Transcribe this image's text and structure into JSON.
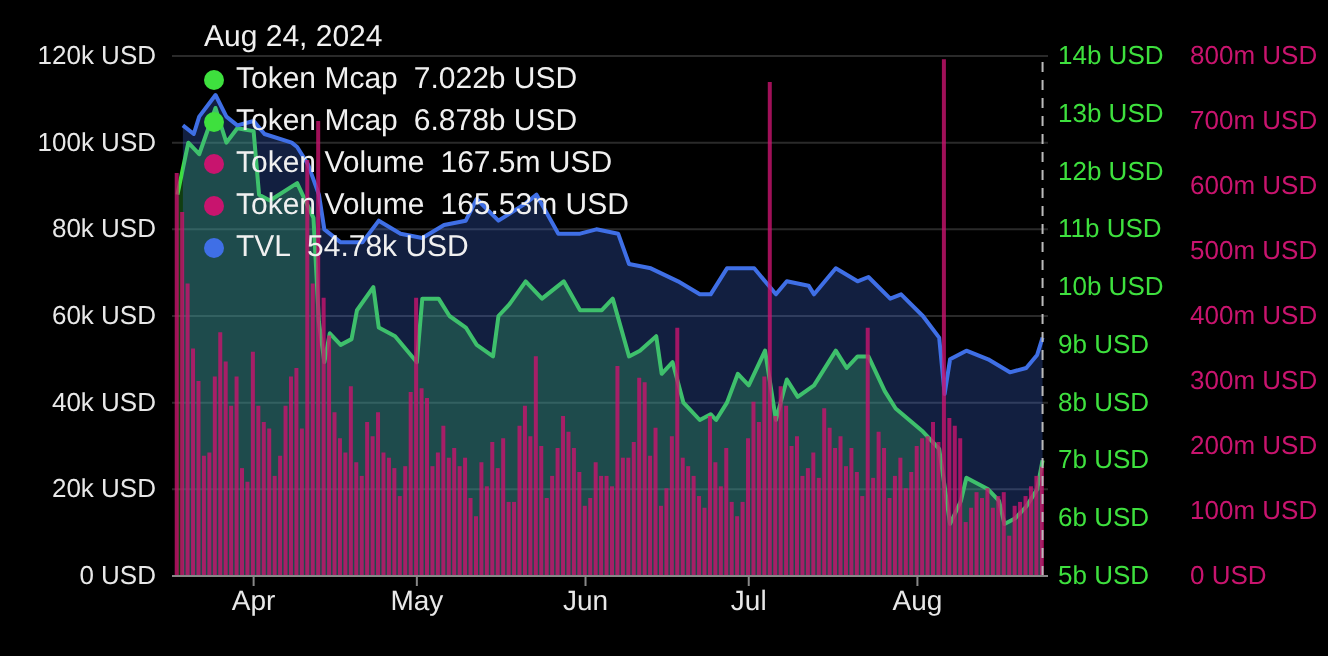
{
  "chart_data": {
    "type": "area",
    "x": [
      "2024-03-18",
      "2024-03-19",
      "2024-03-20",
      "2024-03-21",
      "2024-03-22",
      "2024-03-23",
      "2024-03-24",
      "2024-03-25",
      "2024-03-26",
      "2024-03-27",
      "2024-03-28",
      "2024-03-29",
      "2024-03-30",
      "2024-03-31",
      "2024-04-01",
      "2024-04-02",
      "2024-04-03",
      "2024-04-04",
      "2024-04-05",
      "2024-04-06",
      "2024-04-07",
      "2024-04-08",
      "2024-04-09",
      "2024-04-10",
      "2024-04-11",
      "2024-04-12",
      "2024-04-13",
      "2024-04-14",
      "2024-04-15",
      "2024-04-16",
      "2024-04-17",
      "2024-04-18",
      "2024-04-19",
      "2024-04-20",
      "2024-04-21",
      "2024-04-22",
      "2024-04-23",
      "2024-04-24",
      "2024-04-25",
      "2024-04-26",
      "2024-04-27",
      "2024-04-28",
      "2024-04-29",
      "2024-04-30",
      "2024-05-01",
      "2024-05-02",
      "2024-05-03",
      "2024-05-04",
      "2024-05-05",
      "2024-05-06",
      "2024-05-07",
      "2024-05-08",
      "2024-05-09",
      "2024-05-10",
      "2024-05-11",
      "2024-05-12",
      "2024-05-13",
      "2024-05-14",
      "2024-05-15",
      "2024-05-16",
      "2024-05-17",
      "2024-05-18",
      "2024-05-19",
      "2024-05-20",
      "2024-05-21",
      "2024-05-22",
      "2024-05-23",
      "2024-05-24",
      "2024-05-25",
      "2024-05-26",
      "2024-05-27",
      "2024-05-28",
      "2024-05-29",
      "2024-05-30",
      "2024-05-31",
      "2024-06-01",
      "2024-06-02",
      "2024-06-03",
      "2024-06-04",
      "2024-06-05",
      "2024-06-06",
      "2024-06-07",
      "2024-06-08",
      "2024-06-09",
      "2024-06-10",
      "2024-06-11",
      "2024-06-12",
      "2024-06-13",
      "2024-06-14",
      "2024-06-15",
      "2024-06-16",
      "2024-06-17",
      "2024-06-18",
      "2024-06-19",
      "2024-06-20",
      "2024-06-21",
      "2024-06-22",
      "2024-06-23",
      "2024-06-24",
      "2024-06-25",
      "2024-06-26",
      "2024-06-27",
      "2024-06-28",
      "2024-06-29",
      "2024-06-30",
      "2024-07-01",
      "2024-07-02",
      "2024-07-03",
      "2024-07-04",
      "2024-07-05",
      "2024-07-06",
      "2024-07-07",
      "2024-07-08",
      "2024-07-09",
      "2024-07-10",
      "2024-07-11",
      "2024-07-12",
      "2024-07-13",
      "2024-07-14",
      "2024-07-15",
      "2024-07-16",
      "2024-07-17",
      "2024-07-18",
      "2024-07-19",
      "2024-07-20",
      "2024-07-21",
      "2024-07-22",
      "2024-07-23",
      "2024-07-24",
      "2024-07-25",
      "2024-07-26",
      "2024-07-27",
      "2024-07-28",
      "2024-07-29",
      "2024-07-30",
      "2024-07-31",
      "2024-08-01",
      "2024-08-02",
      "2024-08-03",
      "2024-08-04",
      "2024-08-05",
      "2024-08-06",
      "2024-08-07",
      "2024-08-08",
      "2024-08-09",
      "2024-08-10",
      "2024-08-11",
      "2024-08-12",
      "2024-08-13",
      "2024-08-14",
      "2024-08-15",
      "2024-08-16",
      "2024-08-17",
      "2024-08-18",
      "2024-08-19",
      "2024-08-20",
      "2024-08-21",
      "2024-08-22",
      "2024-08-23",
      "2024-08-24"
    ],
    "series": [
      {
        "name": "Token Mcap",
        "axis": "y2",
        "color": "#3ee03e",
        "x": [
          "2024-03-18",
          "2024-03-20",
          "2024-03-22",
          "2024-03-25",
          "2024-03-27",
          "2024-03-29",
          "2024-04-01",
          "2024-04-02",
          "2024-04-04",
          "2024-04-09",
          "2024-04-12",
          "2024-04-13",
          "2024-04-14",
          "2024-04-15",
          "2024-04-17",
          "2024-04-19",
          "2024-04-20",
          "2024-04-23",
          "2024-04-24",
          "2024-04-27",
          "2024-05-01",
          "2024-05-02",
          "2024-05-05",
          "2024-05-07",
          "2024-05-10",
          "2024-05-12",
          "2024-05-15",
          "2024-05-16",
          "2024-05-18",
          "2024-05-21",
          "2024-05-24",
          "2024-05-28",
          "2024-05-31",
          "2024-06-04",
          "2024-06-06",
          "2024-06-09",
          "2024-06-11",
          "2024-06-14",
          "2024-06-15",
          "2024-06-17",
          "2024-06-19",
          "2024-06-22",
          "2024-06-24",
          "2024-06-25",
          "2024-06-27",
          "2024-06-29",
          "2024-07-01",
          "2024-07-04",
          "2024-07-06",
          "2024-07-08",
          "2024-07-10",
          "2024-07-13",
          "2024-07-17",
          "2024-07-19",
          "2024-07-21",
          "2024-07-23",
          "2024-07-26",
          "2024-07-28",
          "2024-08-02",
          "2024-08-05",
          "2024-08-07",
          "2024-08-09",
          "2024-08-10",
          "2024-08-14",
          "2024-08-16",
          "2024-08-17",
          "2024-08-19",
          "2024-08-21",
          "2024-08-23",
          "2024-08-24"
        ],
        "values": [
          11.6,
          12.5,
          12.3,
          13.1,
          12.5,
          12.75,
          12.7,
          11.6,
          11.5,
          11.8,
          11.2,
          9.4,
          8.7,
          9.2,
          9.0,
          9.1,
          9.6,
          10.0,
          9.3,
          9.15,
          8.7,
          9.8,
          9.8,
          9.5,
          9.3,
          9.0,
          8.8,
          9.5,
          9.7,
          10.1,
          9.8,
          10.1,
          9.6,
          9.6,
          9.8,
          8.8,
          8.9,
          9.15,
          8.5,
          8.7,
          8.0,
          7.7,
          7.8,
          7.7,
          8.0,
          8.5,
          8.3,
          8.9,
          7.7,
          8.4,
          8.1,
          8.3,
          8.9,
          8.6,
          8.8,
          8.8,
          8.2,
          7.9,
          7.5,
          7.2,
          5.9,
          6.3,
          6.7,
          6.5,
          6.3,
          5.9,
          6.0,
          6.2,
          6.5,
          7.0
        ]
      },
      {
        "name": "Token Volume",
        "type": "bar",
        "axis": "y3",
        "color": "#c8146e",
        "values": [
          620,
          560,
          450,
          350,
          300,
          185,
          190,
          307,
          375,
          330,
          262,
          307,
          166,
          145,
          345,
          262,
          237,
          227,
          154,
          185,
          262,
          307,
          320,
          227,
          640,
          450,
          700,
          428,
          370,
          252,
          212,
          190,
          292,
          175,
          154,
          237,
          215,
          252,
          190,
          182,
          166,
          123,
          169,
          283,
          428,
          289,
          274,
          169,
          190,
          231,
          182,
          197,
          169,
          182,
          120,
          92,
          175,
          138,
          206,
          166,
          212,
          114,
          114,
          231,
          262,
          215,
          338,
          200,
          120,
          154,
          197,
          246,
          222,
          197,
          160,
          108,
          120,
          175,
          154,
          154,
          138,
          323,
          182,
          182,
          206,
          305,
          298,
          185,
          228,
          108,
          135,
          215,
          382,
          182,
          169,
          154,
          123,
          105,
          246,
          175,
          138,
          197,
          114,
          92,
          114,
          212,
          268,
          237,
          307,
          760,
          246,
          292,
          262,
          200,
          215,
          154,
          166,
          190,
          151,
          258,
          228,
          197,
          215,
          169,
          197,
          160,
          123,
          382,
          151,
          222,
          197,
          120,
          154,
          182,
          135,
          160,
          200,
          212,
          215,
          237,
          206,
          795,
          243,
          231,
          212,
          83,
          105,
          129,
          120,
          135,
          105,
          123,
          129,
          62,
          108,
          114,
          123,
          138,
          154,
          168
        ]
      },
      {
        "name": "TVL",
        "axis": "y",
        "color": "#3f6fe6",
        "x": [
          "2024-03-19",
          "2024-03-21",
          "2024-03-22",
          "2024-03-25",
          "2024-03-27",
          "2024-03-29",
          "2024-04-01",
          "2024-04-03",
          "2024-04-08",
          "2024-04-09",
          "2024-04-11",
          "2024-04-13",
          "2024-04-14",
          "2024-04-17",
          "2024-04-21",
          "2024-04-24",
          "2024-04-28",
          "2024-05-02",
          "2024-05-06",
          "2024-05-10",
          "2024-05-12",
          "2024-05-16",
          "2024-05-21",
          "2024-05-23",
          "2024-05-27",
          "2024-05-31",
          "2024-06-03",
          "2024-06-07",
          "2024-06-09",
          "2024-06-13",
          "2024-06-18",
          "2024-06-22",
          "2024-06-24",
          "2024-06-27",
          "2024-07-02",
          "2024-07-06",
          "2024-07-08",
          "2024-07-12",
          "2024-07-13",
          "2024-07-17",
          "2024-07-21",
          "2024-07-23",
          "2024-07-27",
          "2024-07-29",
          "2024-08-02",
          "2024-08-05",
          "2024-08-06",
          "2024-08-07",
          "2024-08-10",
          "2024-08-14",
          "2024-08-18",
          "2024-08-21",
          "2024-08-23",
          "2024-08-24"
        ],
        "values": [
          104,
          102,
          106,
          111,
          106,
          104,
          105,
          102,
          100,
          99,
          95,
          88,
          80,
          77,
          77,
          82,
          79,
          78,
          81,
          82,
          87,
          82,
          86,
          88,
          79,
          79,
          80,
          79,
          72,
          71,
          68,
          65,
          65,
          71,
          71,
          65,
          68,
          67,
          65,
          71,
          68,
          69,
          64,
          65,
          60,
          55,
          42,
          50,
          52,
          50,
          47,
          48,
          51,
          55
        ]
      }
    ],
    "xlim": [
      "2024-03-17",
      "2024-08-25"
    ],
    "xticks": [
      {
        "value": "2024-04-01",
        "label": "Apr"
      },
      {
        "value": "2024-05-01",
        "label": "May"
      },
      {
        "value": "2024-06-01",
        "label": "Jun"
      },
      {
        "value": "2024-07-01",
        "label": "Jul"
      },
      {
        "value": "2024-08-01",
        "label": "Aug"
      }
    ],
    "ylim": [
      0,
      120
    ],
    "yticks": [
      {
        "value": 0,
        "label": "0 USD"
      },
      {
        "value": 20,
        "label": "20k USD"
      },
      {
        "value": 40,
        "label": "40k USD"
      },
      {
        "value": 60,
        "label": "60k USD"
      },
      {
        "value": 80,
        "label": "80k USD"
      },
      {
        "value": 100,
        "label": "100k USD"
      },
      {
        "value": 120,
        "label": "120k USD"
      }
    ],
    "y2lim": [
      5,
      14
    ],
    "y2ticks": [
      {
        "value": 5,
        "label": "5b USD"
      },
      {
        "value": 6,
        "label": "6b USD"
      },
      {
        "value": 7,
        "label": "7b USD"
      },
      {
        "value": 8,
        "label": "8b USD"
      },
      {
        "value": 9,
        "label": "9b USD"
      },
      {
        "value": 10,
        "label": "10b USD"
      },
      {
        "value": 11,
        "label": "11b USD"
      },
      {
        "value": 12,
        "label": "12b USD"
      },
      {
        "value": 13,
        "label": "13b USD"
      },
      {
        "value": 14,
        "label": "14b USD"
      }
    ],
    "y3lim": [
      0,
      800
    ],
    "y3ticks": [
      {
        "value": 0,
        "label": "0 USD"
      },
      {
        "value": 100,
        "label": "100m USD"
      },
      {
        "value": 200,
        "label": "200m USD"
      },
      {
        "value": 300,
        "label": "300m USD"
      },
      {
        "value": 400,
        "label": "400m USD"
      },
      {
        "value": 500,
        "label": "500m USD"
      },
      {
        "value": 600,
        "label": "600m USD"
      },
      {
        "value": 700,
        "label": "700m USD"
      },
      {
        "value": 800,
        "label": "800m USD"
      }
    ],
    "grid": "y",
    "ref_lines": [
      {
        "axis": "x",
        "value": "2024-08-24",
        "color": "#bbbbbb",
        "line_style": "dashed"
      }
    ],
    "legend": "top left",
    "annotations": [
      "Aug 24, 2024",
      "7.022b USD",
      "6.878b USD",
      "167.5m USD",
      "165.53m USD",
      "54.78k USD"
    ]
  }
}
